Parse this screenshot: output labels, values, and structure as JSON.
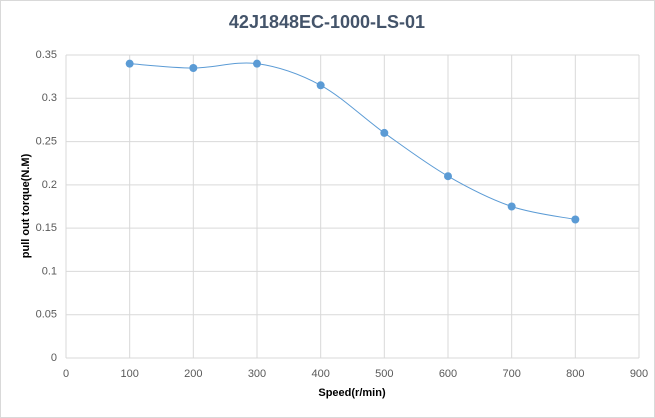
{
  "chart_data": {
    "type": "scatter-smooth",
    "title": "42J1848EC-1000-LS-01",
    "x_label": "Speed(r/min)",
    "y_label": "pull out torque(N.M)",
    "x": [
      100,
      200,
      300,
      400,
      500,
      600,
      700,
      800
    ],
    "series": [
      {
        "name": "",
        "color": "#5b9bd5",
        "values": [
          0.34,
          0.335,
          0.34,
          0.315,
          0.26,
          0.21,
          0.175,
          0.16
        ]
      }
    ],
    "xlim": [
      0,
      900
    ],
    "xticks": [
      0,
      100,
      200,
      300,
      400,
      500,
      600,
      700,
      800,
      900
    ],
    "ylim": [
      0,
      0.35
    ],
    "yticks": [
      0,
      0.05,
      0.1,
      0.15,
      0.2,
      0.25,
      0.3,
      0.35
    ],
    "grid": true
  }
}
